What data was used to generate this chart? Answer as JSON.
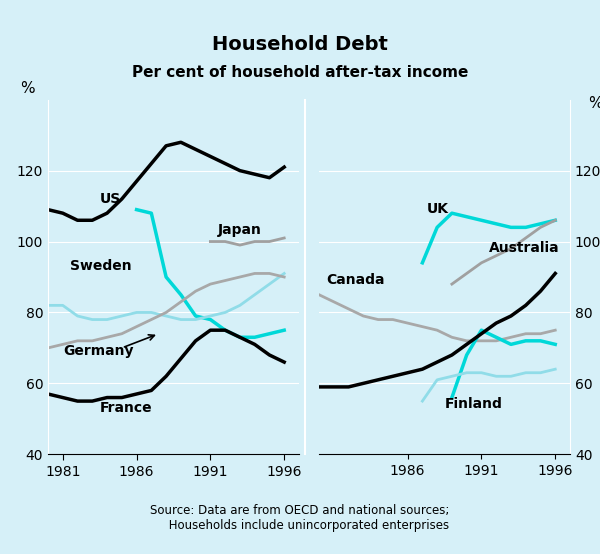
{
  "title": "Household Debt",
  "subtitle": "Per cent of household after-tax income",
  "source": "Source: Data are from OECD and national sources;\n     Households include unincorporated enterprises",
  "background_color": "#d6f0f8",
  "ylim": [
    40,
    140
  ],
  "yticks": [
    40,
    60,
    80,
    100,
    120
  ],
  "left_panel": {
    "years": [
      1980,
      1981,
      1982,
      1983,
      1984,
      1985,
      1986,
      1987,
      1988,
      1989,
      1990,
      1991,
      1992,
      1993,
      1994,
      1995,
      1996
    ],
    "xticks": [
      1981,
      1986,
      1991,
      1996
    ],
    "US": [
      109,
      108,
      106,
      106,
      108,
      112,
      117,
      122,
      127,
      128,
      126,
      124,
      122,
      120,
      119,
      118,
      121
    ],
    "Japan": [
      null,
      null,
      null,
      null,
      null,
      null,
      null,
      null,
      null,
      null,
      null,
      100,
      100,
      99,
      100,
      100,
      101
    ],
    "Sweden_dark": [
      null,
      null,
      null,
      null,
      null,
      null,
      109,
      108,
      90,
      85,
      79,
      78,
      75,
      73,
      73,
      74,
      75
    ],
    "Sweden_light": [
      82,
      82,
      79,
      78,
      78,
      79,
      80,
      80,
      79,
      78,
      78,
      79,
      80,
      82,
      85,
      88,
      91
    ],
    "Germany": [
      70,
      71,
      72,
      72,
      73,
      74,
      76,
      78,
      80,
      83,
      86,
      88,
      89,
      90,
      91,
      91,
      90
    ],
    "France": [
      57,
      56,
      55,
      55,
      56,
      56,
      57,
      58,
      62,
      67,
      72,
      75,
      75,
      73,
      71,
      68,
      66
    ]
  },
  "right_panel": {
    "years": [
      1980,
      1981,
      1982,
      1983,
      1984,
      1985,
      1986,
      1987,
      1988,
      1989,
      1990,
      1991,
      1992,
      1993,
      1994,
      1995,
      1996
    ],
    "xticks": [
      1986,
      1991,
      1996
    ],
    "UK": [
      null,
      null,
      null,
      null,
      null,
      null,
      null,
      94,
      104,
      108,
      107,
      106,
      105,
      104,
      104,
      105,
      106
    ],
    "Australia": [
      null,
      null,
      null,
      null,
      null,
      null,
      null,
      null,
      null,
      88,
      91,
      94,
      96,
      98,
      101,
      104,
      106
    ],
    "Canada": [
      85,
      83,
      81,
      79,
      78,
      78,
      77,
      76,
      75,
      73,
      72,
      72,
      72,
      73,
      74,
      74,
      75
    ],
    "Finland_dark": [
      null,
      null,
      null,
      null,
      null,
      null,
      null,
      null,
      null,
      56,
      68,
      75,
      73,
      71,
      72,
      72,
      71
    ],
    "Finland_light": [
      null,
      null,
      null,
      null,
      null,
      null,
      null,
      55,
      61,
      62,
      63,
      63,
      62,
      62,
      63,
      63,
      64
    ],
    "Australia_black": [
      59,
      59,
      59,
      60,
      61,
      62,
      63,
      64,
      66,
      68,
      71,
      74,
      77,
      79,
      82,
      86,
      91
    ]
  },
  "colors": {
    "black": "#000000",
    "cyan_dark": "#00d0d0",
    "cyan_light": "#80e0e8",
    "gray": "#a0a0a0",
    "france_color": "#000000"
  }
}
